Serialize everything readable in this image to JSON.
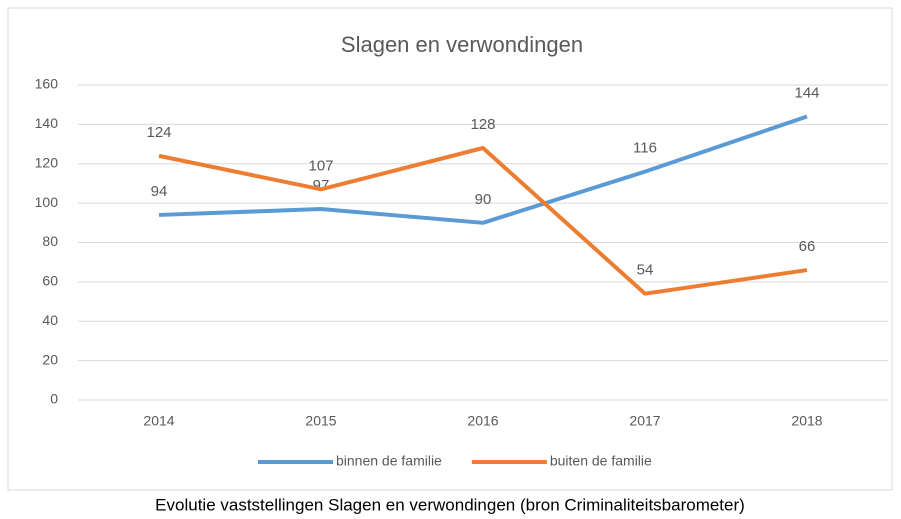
{
  "chart_data": {
    "type": "line",
    "title": "Slagen en verwondingen",
    "categories": [
      "2014",
      "2015",
      "2016",
      "2017",
      "2018"
    ],
    "series": [
      {
        "name": "binnen de familie",
        "color": "#5b9bd5",
        "values": [
          94,
          97,
          90,
          116,
          144
        ]
      },
      {
        "name": "buiten de familie",
        "color": "#ed7d31",
        "values": [
          124,
          107,
          128,
          54,
          66
        ]
      }
    ],
    "ylim": [
      0,
      160
    ],
    "yticks": [
      0,
      20,
      40,
      60,
      80,
      100,
      120,
      140,
      160
    ],
    "grid": true,
    "legend": "bottom",
    "caption": "Evolutie vaststellingen Slagen en verwondingen (bron Criminaliteitsbarometer)"
  }
}
